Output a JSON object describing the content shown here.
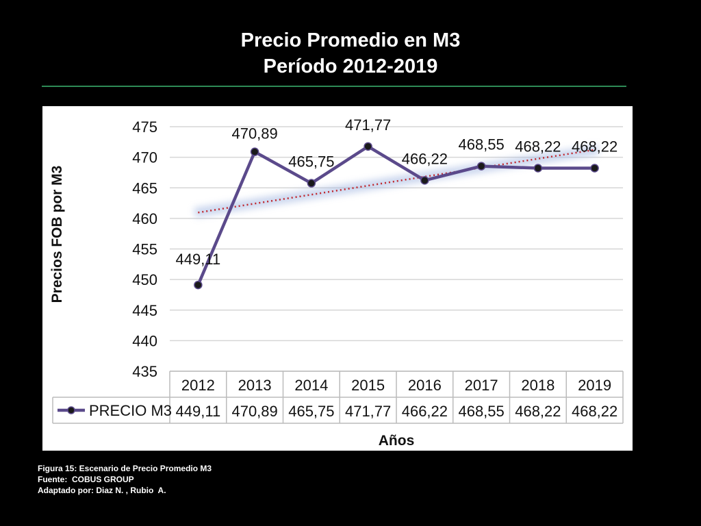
{
  "slide": {
    "title_line1": "Precio Promedio en M3",
    "title_line2": "Período 2012-2019",
    "accent_color": "#2e8b57"
  },
  "caption": {
    "figure": "Figura 15: Escenario de Precio Promedio M3",
    "source": "Fuente:  COBUS GROUP",
    "adapted": "Adaptado por: Diaz N. , Rubio  A."
  },
  "chart_data": {
    "type": "line",
    "categories": [
      "2012",
      "2013",
      "2014",
      "2015",
      "2016",
      "2017",
      "2018",
      "2019"
    ],
    "series": [
      {
        "name": "PRECIO M3",
        "values": [
          449.11,
          470.89,
          465.75,
          471.77,
          466.22,
          468.55,
          468.22,
          468.22
        ],
        "labels": [
          "449,11",
          "470,89",
          "465,75",
          "471,77",
          "466,22",
          "468,55",
          "468,22",
          "468,22"
        ],
        "color": "#5b4a8b"
      }
    ],
    "trendline": {
      "type": "linear",
      "style": "dotted",
      "color": "#c0262c"
    },
    "xlabel": "Años",
    "ylabel": "Precios FOB por M3",
    "ylim": [
      435,
      475
    ],
    "yticks": [
      435,
      440,
      445,
      450,
      455,
      460,
      465,
      470,
      475
    ],
    "grid": true,
    "data_table": true
  }
}
